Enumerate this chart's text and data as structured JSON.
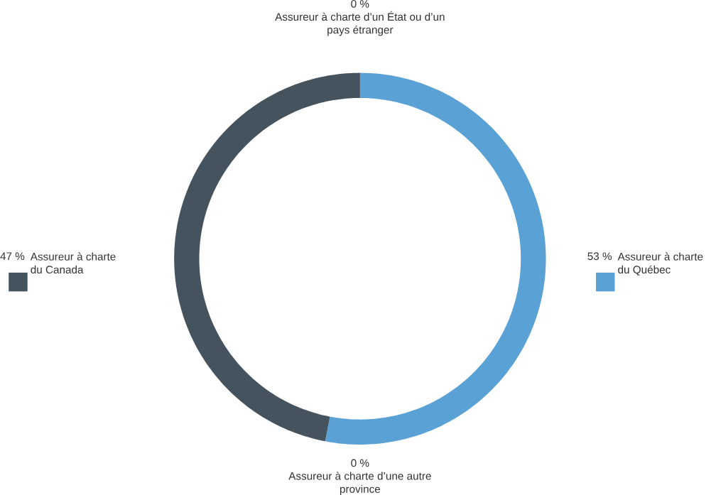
{
  "chart_data": {
    "type": "donut",
    "categories": [
      "Assureur à charte du Québec",
      "Assureur à charte d’une autre province",
      "Assureur à charte du Canada",
      "Assureur à charte d’un État ou d’un pays étranger"
    ],
    "values": [
      53,
      0,
      47,
      0
    ],
    "colors": [
      "#5aa2d5",
      "#7f8c96",
      "#44535e",
      "#b8c2c9"
    ],
    "value_labels": [
      "53 %",
      "0 %",
      "47 %",
      "0 %"
    ]
  }
}
